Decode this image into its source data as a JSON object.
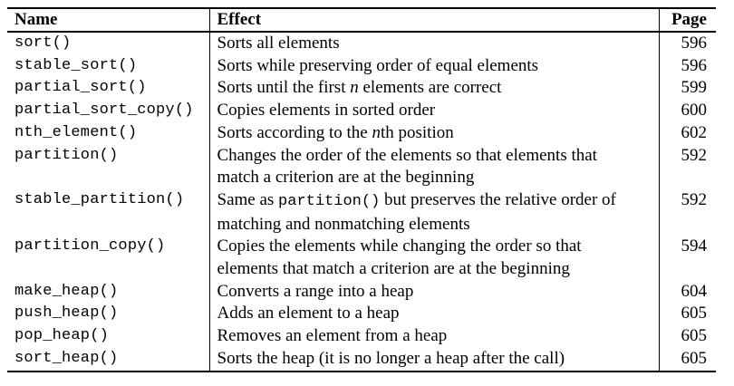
{
  "table": {
    "headers": {
      "name": "Name",
      "effect": "Effect",
      "page": "Page"
    },
    "rows": [
      {
        "name": "sort()",
        "effect": "Sorts all elements",
        "page": "596"
      },
      {
        "name": "stable_sort()",
        "effect": "Sorts while preserving order of equal elements",
        "page": "596"
      },
      {
        "name": "partial_sort()",
        "effect_pre": "Sorts until the first ",
        "effect_em": "n",
        "effect_post": " elements are correct",
        "page": "599"
      },
      {
        "name": "partial_sort_copy()",
        "effect": "Copies elements in sorted order",
        "page": "600"
      },
      {
        "name": "nth_element()",
        "effect_pre": "Sorts according to the ",
        "effect_em": "n",
        "effect_post": "th position",
        "page": "602"
      },
      {
        "name": "partition()",
        "effect_line1": "Changes the order of the elements so that elements that",
        "effect_line2": "match a criterion are at the beginning",
        "page": "592"
      },
      {
        "name": "stable_partition()",
        "effect_pre": "Same as ",
        "effect_code": "partition()",
        "effect_post": " but preserves the relative order of",
        "effect_line2": "matching and nonmatching elements",
        "page": "592"
      },
      {
        "name": "partition_copy()",
        "effect_line1": "Copies the elements while changing the order so that",
        "effect_line2": "elements that match a criterion are at the beginning",
        "page": "594"
      },
      {
        "name": "make_heap()",
        "effect": "Converts a range into a heap",
        "page": "604"
      },
      {
        "name": "push_heap()",
        "effect": "Adds an element to a heap",
        "page": "605"
      },
      {
        "name": "pop_heap()",
        "effect": "Removes an element from a heap",
        "page": "605"
      },
      {
        "name": "sort_heap()",
        "effect": "Sorts the heap (it is no longer a heap after the call)",
        "page": "605"
      }
    ]
  }
}
